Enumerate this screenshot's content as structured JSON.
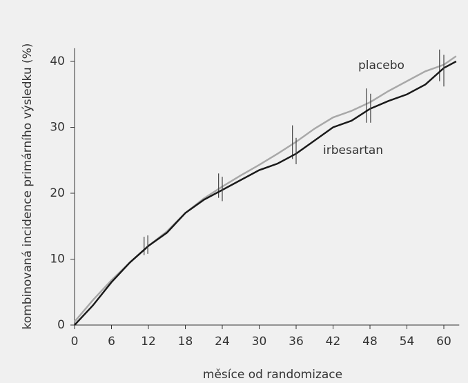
{
  "chart_data": {
    "type": "line",
    "xlabel": "měsíce od randomizace",
    "ylabel": "kombinovaná incidence primárního výsledku (%)",
    "x": [
      0,
      3,
      6,
      9,
      12,
      15,
      18,
      21,
      24,
      27,
      30,
      33,
      36,
      39,
      42,
      45,
      48,
      51,
      54,
      57,
      60,
      62
    ],
    "series": [
      {
        "name": "placebo",
        "color": "#a8a8a8",
        "values": [
          0.5,
          3.8,
          6.8,
          9.5,
          12,
          14.2,
          17,
          19.2,
          21,
          22.7,
          24.3,
          26,
          27.8,
          29.8,
          31.5,
          32.5,
          33.8,
          35.5,
          37,
          38.5,
          39.5,
          40.8
        ],
        "ci_x": [
          11.3,
          23.4,
          35.4,
          47.4,
          59.3
        ],
        "ci_low": [
          10.6,
          19.3,
          25.2,
          30.7,
          37.0
        ],
        "ci_high": [
          13.4,
          23.0,
          30.3,
          35.9,
          41.8
        ]
      },
      {
        "name": "irbesartan",
        "color": "#1a1a1a",
        "values": [
          0,
          3.0,
          6.5,
          9.5,
          12,
          14,
          17,
          19,
          20.5,
          22,
          23.5,
          24.5,
          26,
          28,
          30,
          31,
          32.8,
          34,
          35,
          36.5,
          39,
          40
        ],
        "ci_x": [
          11.9,
          24.0,
          36.0,
          48.1,
          60.0
        ],
        "ci_low": [
          10.8,
          18.8,
          24.4,
          30.7,
          36.2
        ],
        "ci_high": [
          13.6,
          22.5,
          28.4,
          35.1,
          41.0
        ]
      }
    ],
    "xlim": [
      0,
      62.5
    ],
    "xticks": [
      0,
      6,
      12,
      18,
      24,
      30,
      36,
      42,
      48,
      54,
      60
    ],
    "ylim": [
      0,
      42
    ],
    "yticks": [
      0,
      10,
      20,
      30,
      40
    ]
  }
}
